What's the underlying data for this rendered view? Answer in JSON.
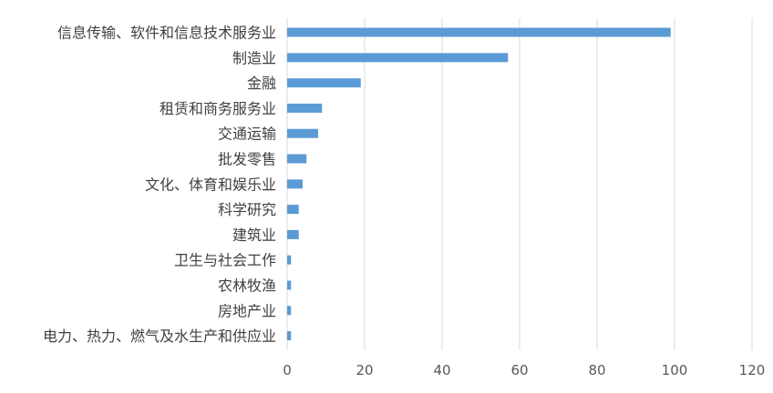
{
  "chart_data": {
    "type": "bar",
    "orientation": "horizontal",
    "title": "",
    "xlabel": "",
    "ylabel": "",
    "categories": [
      "信息传输、软件和信息技术服务业",
      "制造业",
      "金融",
      "租赁和商务服务业",
      "交通运输",
      "批发零售",
      "文化、体育和娱乐业",
      "科学研究",
      "建筑业",
      "卫生与社会工作",
      "农林牧渔",
      "房地产业",
      "电力、热力、燃气及水生产和供应业"
    ],
    "values": [
      99,
      57,
      19,
      9,
      8,
      5,
      4,
      3,
      3,
      1,
      1,
      1,
      1
    ],
    "xlim": [
      0,
      120
    ],
    "xticks": [
      0,
      20,
      40,
      60,
      80,
      100,
      120
    ],
    "grid": "vertical",
    "legend": "none",
    "bar_color": "#5b9bd5",
    "grid_color": "#d9d9d9"
  }
}
